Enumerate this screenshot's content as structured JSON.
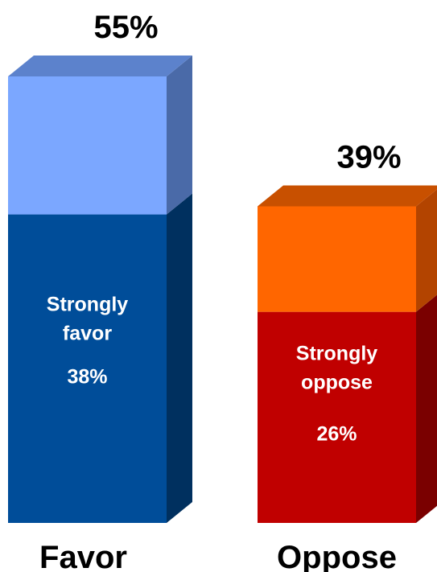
{
  "chart_data": {
    "type": "bar",
    "subtype": "stacked-3d",
    "categories": [
      "Favor",
      "Oppose"
    ],
    "totals": [
      55,
      39
    ],
    "total_labels": [
      "55%",
      "39%"
    ],
    "series": [
      {
        "name": "Strongly",
        "values": [
          38,
          26
        ],
        "segment_labels": [
          "Strongly\nfavor",
          "Strongly\noppose"
        ],
        "value_labels": [
          "38%",
          "26%"
        ]
      },
      {
        "values": [
          17,
          13
        ]
      }
    ],
    "unit": "%",
    "colors": {
      "favor_strong": "#004d99",
      "favor_strong_side": "#00305f",
      "favor_light": "#7ba7ff",
      "favor_light_side": "#4a6aa8",
      "favor_top": "#5c82cc",
      "oppose_strong": "#c00000",
      "oppose_strong_side": "#7a0000",
      "oppose_light": "#ff6600",
      "oppose_light_side": "#b34400",
      "oppose_top": "#c85000"
    }
  }
}
